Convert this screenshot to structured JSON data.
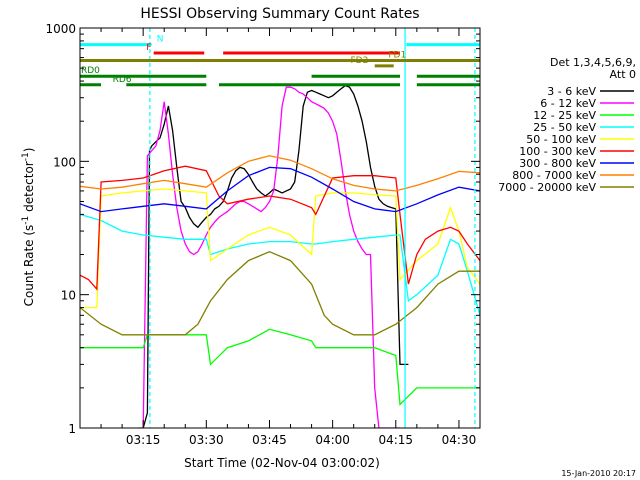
{
  "chart_data": {
    "type": "line",
    "title": "HESSI Observing Summary Count Rates",
    "xlabel": "Start Time (02-Nov-04 03:00:02)",
    "ylabel_main": "Count Rate (s",
    "ylabel_sup1": "-1",
    "ylabel_mid": " detector",
    "ylabel_sup2": "-1",
    "ylabel_end": ")",
    "ylog": true,
    "xlim_minutes": [
      0,
      95
    ],
    "ylim": [
      1,
      1000
    ],
    "x_ticks": [
      {
        "m": 15,
        "label": "03:15"
      },
      {
        "m": 30,
        "label": "03:30"
      },
      {
        "m": 45,
        "label": "03:45"
      },
      {
        "m": 60,
        "label": "04:00"
      },
      {
        "m": 75,
        "label": "04:15"
      },
      {
        "m": 90,
        "label": "04:30"
      }
    ],
    "y_ticks": [
      {
        "v": 1,
        "label": "1"
      },
      {
        "v": 10,
        "label": "10"
      },
      {
        "v": 100,
        "label": "100"
      },
      {
        "v": 1000,
        "label": "1000"
      }
    ],
    "timestamp": "15-Jan-2010 20:17",
    "legend": {
      "header1": "Det 1,3,4,5,6,9,",
      "header2": "Att 0",
      "entries": [
        {
          "label": "3 - 6 keV",
          "color": "#000000"
        },
        {
          "label": "6 - 12 keV",
          "color": "#ff00ff"
        },
        {
          "label": "12 - 25 keV",
          "color": "#00ff00"
        },
        {
          "label": "25 - 50 keV",
          "color": "#00ffff"
        },
        {
          "label": "50 - 100 keV",
          "color": "#ffff00"
        },
        {
          "label": "100 - 300 keV",
          "color": "#ff0000"
        },
        {
          "label": "300 - 800 keV",
          "color": "#0000ff"
        },
        {
          "label": "800 - 7000 keV",
          "color": "#ff8000"
        },
        {
          "label": "7000 - 20000 keV",
          "color": "#808000"
        }
      ]
    },
    "flag_bars": [
      {
        "label": "N",
        "color": "#00ffff",
        "value": 750,
        "segments": [
          [
            0,
            17
          ],
          [
            77.5,
            95
          ]
        ],
        "label_m": 18
      },
      {
        "label": "F",
        "color": "#ff0000",
        "value": 650,
        "segments": [
          [
            17.5,
            29.5
          ],
          [
            34,
            76
          ]
        ],
        "label_m": 15.5
      },
      {
        "label": "FD1",
        "color": "#808000",
        "value": 570,
        "segments": [
          [
            0,
            95
          ]
        ],
        "label_m": 73
      },
      {
        "label": "FD2",
        "color": "#808000",
        "value": 520,
        "segments": [
          [
            70,
            74.5
          ]
        ],
        "label_m": 64
      },
      {
        "label": "RD0",
        "color": "#008000",
        "value": 435,
        "segments": [
          [
            0,
            30
          ],
          [
            55,
            76
          ],
          [
            80,
            95
          ]
        ],
        "label_m": 0
      },
      {
        "label": "RD6",
        "color": "#008000",
        "value": 375,
        "segments": [
          [
            0,
            5
          ],
          [
            11,
            30
          ],
          [
            33,
            76
          ],
          [
            80,
            95
          ]
        ],
        "label_m": 7.5
      }
    ],
    "vlines": [
      {
        "m": 16.6,
        "color": "#00ffff",
        "dashed": true
      },
      {
        "m": 77.2,
        "color": "#00ffff",
        "dashed": false
      },
      {
        "m": 93.8,
        "color": "#00ffff",
        "dashed": true
      }
    ],
    "series": [
      {
        "name": "3 - 6 keV",
        "color": "#000000",
        "x": [
          15,
          16,
          16.5,
          17,
          18,
          19,
          20,
          21,
          22,
          23,
          24,
          25,
          26,
          27,
          28,
          29,
          30,
          31,
          32,
          33,
          34,
          35,
          36,
          37,
          38,
          39,
          40,
          41,
          42,
          43,
          44,
          45,
          46,
          47,
          48,
          49,
          50,
          51,
          52,
          53,
          54,
          55,
          56,
          57,
          58,
          59,
          60,
          61,
          62,
          63,
          64,
          65,
          66,
          67,
          68,
          69,
          70,
          71,
          72,
          73,
          74,
          75,
          76,
          77,
          78
        ],
        "y": [
          1,
          1.3,
          120,
          130,
          140,
          150,
          190,
          260,
          170,
          90,
          50,
          45,
          38,
          34,
          32,
          35,
          38,
          40,
          44,
          46,
          50,
          60,
          75,
          85,
          90,
          88,
          80,
          70,
          62,
          58,
          55,
          58,
          62,
          60,
          58,
          60,
          62,
          70,
          120,
          260,
          330,
          340,
          330,
          320,
          310,
          300,
          310,
          330,
          350,
          370,
          360,
          320,
          260,
          200,
          140,
          90,
          65,
          52,
          48,
          46,
          45,
          44,
          3,
          3,
          3
        ]
      },
      {
        "name": "6 - 12 keV",
        "color": "#ff00ff",
        "x": [
          14,
          15,
          16,
          17,
          18,
          19,
          20,
          21,
          22,
          23,
          24,
          25,
          26,
          27,
          28,
          29,
          30,
          31,
          32,
          33,
          34,
          35,
          36,
          37,
          38,
          39,
          40,
          41,
          42,
          43,
          44,
          45,
          46,
          47,
          48,
          49,
          50,
          51,
          52,
          53,
          54,
          55,
          56,
          57,
          58,
          59,
          60,
          61,
          62,
          63,
          64,
          65,
          66,
          67,
          68,
          69,
          70,
          71,
          72,
          73,
          74,
          75,
          76
        ],
        "y": [
          1,
          1,
          110,
          120,
          130,
          170,
          280,
          160,
          80,
          45,
          30,
          24,
          21,
          20,
          21,
          24,
          28,
          32,
          35,
          38,
          40,
          42,
          45,
          48,
          50,
          50,
          48,
          46,
          44,
          42,
          45,
          50,
          60,
          110,
          260,
          360,
          360,
          350,
          330,
          320,
          300,
          280,
          270,
          260,
          250,
          230,
          200,
          160,
          100,
          60,
          40,
          30,
          25,
          22,
          20,
          20,
          2,
          1,
          1,
          1,
          1,
          1,
          1
        ]
      },
      {
        "name": "12 - 25 keV",
        "color": "#00ff00",
        "x": [
          0,
          5,
          10,
          15,
          16,
          20,
          25,
          30,
          31,
          35,
          40,
          45,
          50,
          55,
          56,
          60,
          65,
          70,
          75,
          76,
          80,
          85,
          90,
          92,
          95
        ],
        "y": [
          4,
          4,
          4,
          4,
          5,
          5,
          5,
          5,
          3,
          4,
          4.5,
          5.5,
          5,
          4.5,
          4,
          4,
          4,
          4,
          3.5,
          1.5,
          2,
          2,
          2,
          2,
          2
        ]
      },
      {
        "name": "25 - 50 keV",
        "color": "#00ffff",
        "x": [
          0,
          5,
          10,
          15,
          20,
          25,
          30,
          31,
          35,
          40,
          45,
          50,
          55,
          56,
          60,
          65,
          70,
          75,
          76,
          78,
          80,
          85,
          88,
          90,
          92,
          95
        ],
        "y": [
          40,
          36,
          30,
          28,
          27,
          26,
          26,
          20,
          22,
          24,
          25,
          25,
          24,
          24,
          25,
          26,
          27,
          28,
          28,
          9,
          10,
          14,
          26,
          24,
          15,
          7
        ]
      },
      {
        "name": "50 - 100 keV",
        "color": "#ffff00",
        "x": [
          0,
          2,
          4,
          5,
          10,
          15,
          20,
          25,
          30,
          31,
          35,
          40,
          45,
          50,
          55,
          56,
          60,
          65,
          70,
          75,
          76,
          80,
          85,
          88,
          90,
          92,
          95
        ],
        "y": [
          8,
          8,
          8,
          55,
          58,
          60,
          62,
          60,
          58,
          18,
          22,
          28,
          32,
          28,
          20,
          55,
          58,
          58,
          56,
          55,
          13,
          18,
          24,
          45,
          30,
          16,
          12
        ]
      },
      {
        "name": "100 - 300 keV",
        "color": "#ff0000",
        "x": [
          0,
          2,
          4,
          5,
          10,
          15,
          20,
          25,
          30,
          33,
          35,
          40,
          45,
          50,
          55,
          56,
          60,
          65,
          70,
          75,
          76,
          78,
          80,
          82,
          85,
          88,
          90,
          92,
          95
        ],
        "y": [
          14,
          13,
          11,
          70,
          72,
          75,
          85,
          92,
          85,
          55,
          48,
          52,
          55,
          52,
          45,
          40,
          75,
          78,
          78,
          75,
          40,
          12,
          20,
          26,
          30,
          32,
          30,
          24,
          18
        ]
      },
      {
        "name": "300 - 800 keV",
        "color": "#0000ff",
        "x": [
          0,
          5,
          10,
          15,
          20,
          25,
          30,
          35,
          40,
          45,
          50,
          55,
          60,
          65,
          70,
          75,
          80,
          85,
          90,
          95
        ],
        "y": [
          48,
          42,
          44,
          46,
          48,
          46,
          44,
          60,
          78,
          90,
          88,
          76,
          62,
          50,
          44,
          42,
          48,
          56,
          64,
          60
        ]
      },
      {
        "name": "800 - 7000 keV",
        "color": "#ff8000",
        "x": [
          0,
          5,
          10,
          15,
          20,
          25,
          30,
          35,
          40,
          45,
          50,
          55,
          60,
          65,
          70,
          75,
          80,
          85,
          90,
          95
        ],
        "y": [
          65,
          62,
          64,
          68,
          72,
          68,
          64,
          82,
          100,
          110,
          102,
          88,
          74,
          66,
          62,
          60,
          66,
          74,
          84,
          82
        ]
      },
      {
        "name": "7000 - 20000 keV",
        "color": "#808000",
        "x": [
          0,
          5,
          10,
          15,
          20,
          25,
          28,
          31,
          35,
          40,
          45,
          50,
          55,
          58,
          60,
          65,
          70,
          75,
          80,
          85,
          90,
          95
        ],
        "y": [
          8,
          6,
          5,
          5,
          5,
          5,
          6,
          9,
          13,
          18,
          21,
          18,
          12,
          7,
          6,
          5,
          5,
          6,
          8,
          12,
          15,
          15
        ]
      }
    ]
  }
}
